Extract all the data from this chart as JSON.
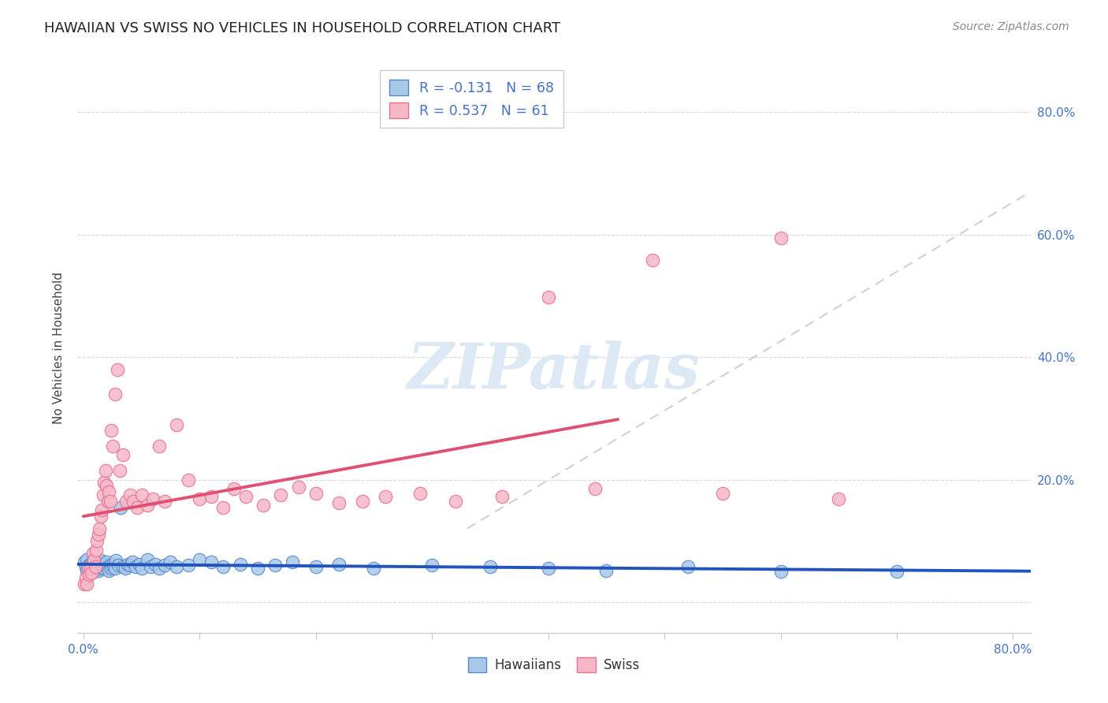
{
  "title": "HAWAIIAN VS SWISS NO VEHICLES IN HOUSEHOLD CORRELATION CHART",
  "source": "Source: ZipAtlas.com",
  "ylabel": "No Vehicles in Household",
  "hawaiian_R": -0.131,
  "hawaiian_N": 68,
  "swiss_R": 0.537,
  "swiss_N": 61,
  "hawaiian_dot_color": "#a8c8e8",
  "swiss_dot_color": "#f5b8c8",
  "hawaiian_edge_color": "#5588cc",
  "swiss_edge_color": "#e87090",
  "hawaiian_line_color": "#2255bb",
  "swiss_line_color": "#e05070",
  "dash_line_color": "#c8ccd8",
  "watermark_color": "#dce8f4",
  "bg_color": "#ffffff",
  "xlim_min": -0.005,
  "xlim_max": 0.815,
  "ylim_min": -0.05,
  "ylim_max": 0.88,
  "x_ticks": [
    0.0,
    0.1,
    0.2,
    0.3,
    0.4,
    0.5,
    0.6,
    0.7,
    0.8
  ],
  "y_ticks": [
    0.0,
    0.2,
    0.4,
    0.6,
    0.8
  ],
  "hawaiian_x": [
    0.001,
    0.002,
    0.003,
    0.003,
    0.004,
    0.005,
    0.005,
    0.006,
    0.007,
    0.008,
    0.008,
    0.009,
    0.01,
    0.01,
    0.011,
    0.012,
    0.013,
    0.013,
    0.014,
    0.015,
    0.016,
    0.017,
    0.018,
    0.019,
    0.02,
    0.021,
    0.022,
    0.023,
    0.024,
    0.025,
    0.026,
    0.027,
    0.028,
    0.03,
    0.032,
    0.034,
    0.036,
    0.038,
    0.04,
    0.042,
    0.045,
    0.048,
    0.05,
    0.055,
    0.058,
    0.062,
    0.065,
    0.07,
    0.075,
    0.08,
    0.09,
    0.1,
    0.11,
    0.12,
    0.135,
    0.15,
    0.165,
    0.18,
    0.2,
    0.22,
    0.25,
    0.3,
    0.35,
    0.4,
    0.45,
    0.52,
    0.6,
    0.7
  ],
  "hawaiian_y": [
    0.065,
    0.058,
    0.052,
    0.07,
    0.055,
    0.06,
    0.048,
    0.062,
    0.058,
    0.055,
    0.068,
    0.05,
    0.06,
    0.055,
    0.065,
    0.058,
    0.052,
    0.06,
    0.055,
    0.068,
    0.058,
    0.062,
    0.055,
    0.06,
    0.065,
    0.058,
    0.052,
    0.06,
    0.055,
    0.062,
    0.058,
    0.055,
    0.068,
    0.06,
    0.155,
    0.058,
    0.055,
    0.062,
    0.06,
    0.065,
    0.058,
    0.062,
    0.055,
    0.07,
    0.058,
    0.062,
    0.055,
    0.06,
    0.065,
    0.058,
    0.06,
    0.07,
    0.065,
    0.058,
    0.062,
    0.055,
    0.06,
    0.065,
    0.058,
    0.062,
    0.055,
    0.06,
    0.058,
    0.055,
    0.052,
    0.058,
    0.05,
    0.05
  ],
  "swiss_x": [
    0.001,
    0.002,
    0.003,
    0.004,
    0.005,
    0.006,
    0.007,
    0.008,
    0.009,
    0.01,
    0.011,
    0.012,
    0.013,
    0.014,
    0.015,
    0.016,
    0.017,
    0.018,
    0.019,
    0.02,
    0.021,
    0.022,
    0.023,
    0.024,
    0.025,
    0.027,
    0.029,
    0.031,
    0.034,
    0.037,
    0.04,
    0.043,
    0.046,
    0.05,
    0.055,
    0.06,
    0.065,
    0.07,
    0.08,
    0.09,
    0.1,
    0.11,
    0.12,
    0.13,
    0.14,
    0.155,
    0.17,
    0.185,
    0.2,
    0.22,
    0.24,
    0.26,
    0.29,
    0.32,
    0.36,
    0.4,
    0.44,
    0.49,
    0.55,
    0.6,
    0.65
  ],
  "swiss_y": [
    0.03,
    0.04,
    0.03,
    0.055,
    0.045,
    0.055,
    0.048,
    0.08,
    0.068,
    0.058,
    0.085,
    0.1,
    0.11,
    0.12,
    0.14,
    0.15,
    0.175,
    0.195,
    0.215,
    0.19,
    0.165,
    0.18,
    0.165,
    0.28,
    0.255,
    0.34,
    0.38,
    0.215,
    0.24,
    0.165,
    0.175,
    0.165,
    0.155,
    0.175,
    0.158,
    0.168,
    0.255,
    0.165,
    0.29,
    0.2,
    0.168,
    0.172,
    0.155,
    0.185,
    0.172,
    0.158,
    0.175,
    0.188,
    0.178,
    0.162,
    0.165,
    0.172,
    0.178,
    0.165,
    0.172,
    0.498,
    0.185,
    0.558,
    0.178,
    0.595,
    0.168
  ]
}
